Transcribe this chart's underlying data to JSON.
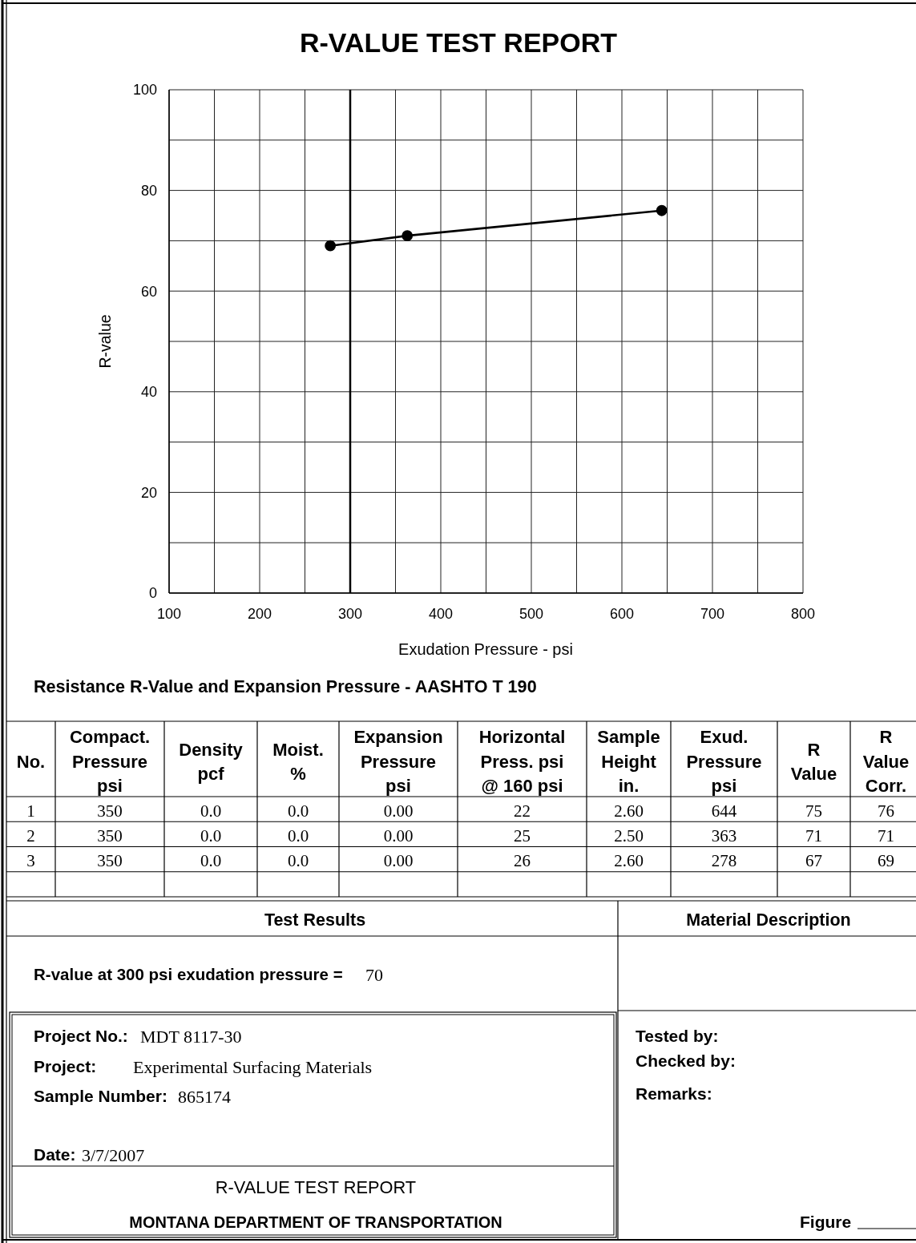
{
  "chart_data": {
    "type": "line",
    "title": "R-VALUE TEST REPORT",
    "xlabel": "Exudation Pressure - psi",
    "ylabel": "R-value",
    "x": [
      278,
      363,
      644
    ],
    "series": [
      {
        "color": "#000000",
        "values": [
          69,
          71,
          76
        ]
      }
    ],
    "xlim": [
      100,
      800
    ],
    "ylim": [
      0,
      100
    ],
    "xticks": [
      100,
      {
        "value": 150,
        "label": null
      },
      200,
      {
        "value": 250,
        "label": null
      },
      300,
      {
        "value": 350,
        "label": null
      },
      400,
      {
        "value": 450,
        "label": null
      },
      500,
      {
        "value": 550,
        "label": null
      },
      600,
      {
        "value": 650,
        "label": null
      },
      700,
      {
        "value": 750,
        "label": null
      },
      800
    ],
    "yticks": [
      0,
      {
        "value": 10,
        "label": null
      },
      20,
      {
        "value": 30,
        "label": null
      },
      40,
      {
        "value": 50,
        "label": null
      },
      60,
      {
        "value": 70,
        "label": null
      },
      80,
      {
        "value": 90,
        "label": null
      },
      100
    ],
    "grid": true,
    "marker": "circle",
    "line_style": "solid",
    "ref_lines": [
      {
        "axis": "x",
        "value": 300,
        "color": "#000000"
      }
    ],
    "annotations": [
      "Resistance R-Value and Expansion Pressure - AASHTO T 190",
      "No.",
      "Compact.\nPressure\npsi",
      "Density\npcf",
      "Moist.\n%",
      "Expansion\nPressure\npsi",
      "Horizontal\nPress. psi\n@ 160 psi",
      "Sample\nHeight\nin.",
      "Exud.\nPressure\npsi",
      "R\nValue",
      "R\nValue\nCorr.",
      "1",
      "350",
      "0.0",
      "0.0",
      "0.00",
      "22",
      "2.60",
      "644",
      "75",
      "76",
      "2",
      "350",
      "0.0",
      "0.0",
      "0.00",
      "25",
      "2.50",
      "363",
      "71",
      "71",
      "3",
      "350",
      "0.0",
      "0.0",
      "0.00",
      "26",
      "2.60",
      "278",
      "67",
      "69",
      "Test Results",
      "Material Description",
      "R-value at 300 psi exudation pressure =",
      "70",
      "Project No.:",
      "MDT 8117-30",
      "Project:",
      "Experimental Surfacing Materials",
      "Sample Number:",
      "865174",
      "Date:",
      "3/7/2007",
      "R-VALUE TEST REPORT",
      "MONTANA DEPARTMENT OF TRANSPORTATION",
      "Tested by:",
      "Checked by:",
      "Remarks:",
      "Figure"
    ]
  }
}
